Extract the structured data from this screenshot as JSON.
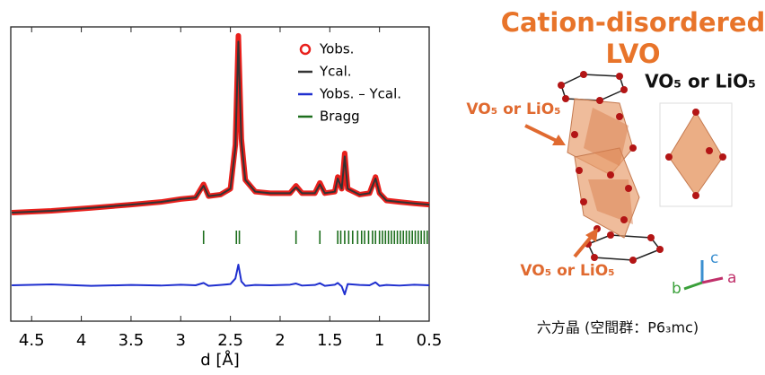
{
  "chart_data": {
    "type": "line",
    "x_label": "d [Å]",
    "xlim": [
      4.71,
      0.5
    ],
    "xticks": [
      4.5,
      4.0,
      3.5,
      3.0,
      2.5,
      2.0,
      1.5,
      1.0,
      0.5
    ],
    "ylim": [
      0,
      100
    ],
    "x": [
      4.7,
      4.3,
      3.9,
      3.5,
      3.2,
      3.0,
      2.85,
      2.77,
      2.72,
      2.6,
      2.5,
      2.45,
      2.42,
      2.39,
      2.35,
      2.25,
      2.1,
      1.9,
      1.84,
      1.78,
      1.65,
      1.6,
      1.55,
      1.45,
      1.42,
      1.38,
      1.35,
      1.32,
      1.2,
      1.1,
      1.04,
      1.0,
      0.93,
      0.8,
      0.65,
      0.5
    ],
    "series": [
      {
        "name": "Yobs.",
        "color": "#e8201c",
        "style": "marker",
        "values": [
          36.9,
          37.5,
          38.5,
          39.6,
          40.5,
          41.5,
          42,
          46.5,
          42.5,
          43,
          45,
          60,
          97,
          62,
          48,
          44,
          43.5,
          43.5,
          46,
          43.5,
          43.5,
          47,
          43.5,
          44,
          49,
          45,
          57,
          45,
          43,
          43.5,
          49,
          43.5,
          41,
          40.5,
          40,
          39.6
        ]
      },
      {
        "name": "Ycal.",
        "color": "#333333",
        "style": "line",
        "values": [
          36.9,
          37.5,
          38.5,
          39.6,
          40.5,
          41.5,
          42,
          46,
          42.5,
          43,
          45,
          59,
          95,
          61,
          48,
          44,
          43.5,
          43.5,
          45.5,
          43.5,
          43.5,
          46.5,
          43.5,
          44,
          48.5,
          45,
          56,
          45,
          43,
          43.5,
          48.5,
          43.5,
          41,
          40.5,
          40,
          39.6
        ]
      },
      {
        "name": "Yobs. – Ycal.",
        "color": "#1f2fcf",
        "style": "line",
        "values": [
          12.2,
          12.5,
          12.0,
          12.3,
          12.1,
          12.4,
          12.2,
          13.0,
          12.0,
          12.3,
          12.6,
          14.5,
          19.2,
          13.5,
          12.0,
          12.3,
          12.2,
          12.4,
          12.8,
          12.1,
          12.3,
          12.9,
          12.0,
          12.4,
          13.0,
          11.8,
          9.1,
          12.6,
          12.3,
          12.2,
          13.2,
          12.0,
          12.3,
          12.1,
          12.4,
          12.2
        ]
      }
    ],
    "bragg": {
      "name": "Bragg",
      "color": "#1d6e1d",
      "positions": [
        2.77,
        2.44,
        2.41,
        1.84,
        1.6,
        1.42,
        1.39,
        1.35,
        1.31,
        1.27,
        1.22,
        1.18,
        1.15,
        1.11,
        1.07,
        1.04,
        1.0,
        0.97,
        0.94,
        0.91,
        0.88,
        0.85,
        0.82,
        0.79,
        0.76,
        0.73,
        0.7,
        0.67,
        0.64,
        0.61,
        0.58,
        0.55,
        0.52
      ]
    }
  },
  "figure": {
    "title_line1": "Cation-disordered",
    "title_line2": "LVO",
    "polyhedron_label": "VO₅ or LiO₅",
    "arrow_label_top": "VO₅ or LiO₅",
    "arrow_label_bottom": "VO₅ or LiO₅",
    "axis_c": "c",
    "axis_a": "a",
    "axis_b": "b",
    "caption": "六方晶 (空間群：P6₃mc)"
  }
}
